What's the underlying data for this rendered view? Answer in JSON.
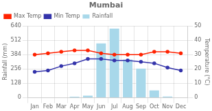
{
  "chart_data": {
    "type": "bar",
    "title": "Mumbai",
    "categories": [
      "Jan",
      "Feb",
      "Mar",
      "Apr",
      "May",
      "Jun",
      "Jul",
      "Aug",
      "Sep",
      "Oct",
      "Nov",
      "Dec"
    ],
    "series": [
      {
        "name": "Rainfall",
        "type": "bar",
        "color": "#a8d8ea",
        "values": [
          2,
          2,
          3,
          8,
          18,
          485,
          617,
          340,
          260,
          65,
          10,
          2
        ]
      },
      {
        "name": "Max Temp",
        "type": "line",
        "axis": "y2",
        "color": "#ff2200",
        "marker": "circle",
        "values": [
          30,
          31,
          32,
          33,
          33,
          31,
          30,
          30,
          30,
          32,
          32,
          31
        ]
      },
      {
        "name": "Min Temp",
        "type": "line",
        "axis": "y2",
        "color": "#3333aa",
        "marker": "circle",
        "values": [
          18,
          19,
          22,
          24,
          27,
          27,
          26,
          26,
          25,
          24,
          21,
          19
        ]
      }
    ],
    "ylabel": "Rainfall (mm)",
    "y2label": "Temperature (°C)",
    "ylim": [
      0,
      640
    ],
    "yticks": [
      0,
      128,
      256,
      384,
      512,
      640
    ],
    "y2lim": [
      0,
      50
    ],
    "y2ticks": [
      0,
      10,
      20,
      30,
      40,
      50
    ],
    "grid": true,
    "legend": "upper left"
  }
}
